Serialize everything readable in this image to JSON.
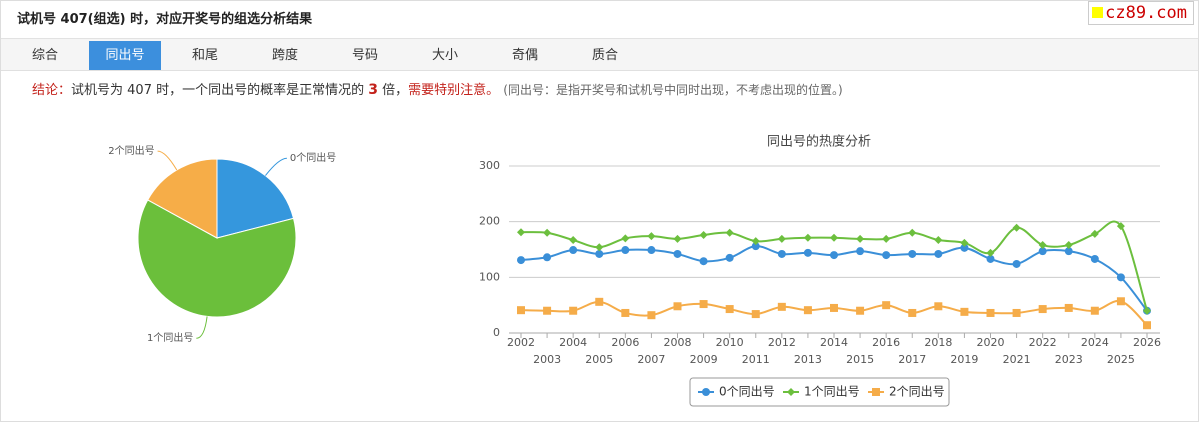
{
  "header": {
    "title": "试机号 407(组选) 时，对应开奖号的组选分析结果"
  },
  "watermark": "cz89.com",
  "tabs": [
    "综合",
    "同出号",
    "和尾",
    "跨度",
    "号码",
    "大小",
    "奇偶",
    "质合"
  ],
  "active_tab": 1,
  "conclusion": {
    "label": "结论：",
    "text": "试机号为 407 时，一个同出号的概率是正常情况的 ",
    "ratio": "3",
    "text_after": " 倍，",
    "warning": "需要特别注意。",
    "note": "(同出号：是指开奖号和试机号中同时出现，不考虑出现的位置。)"
  },
  "chart_data": [
    {
      "type": "pie",
      "categories": [
        "0个同出号",
        "1个同出号",
        "2个同出号"
      ],
      "values": [
        21,
        62,
        17
      ],
      "colors": [
        "#3597dd",
        "#6bbf3b",
        "#f6ad48"
      ]
    },
    {
      "type": "line",
      "title": "同出号的热度分析",
      "x": [
        2002,
        2003,
        2004,
        2005,
        2006,
        2007,
        2008,
        2009,
        2010,
        2011,
        2012,
        2013,
        2014,
        2015,
        2016,
        2017,
        2018,
        2019,
        2020,
        2021,
        2022,
        2023,
        2024,
        2025,
        2026
      ],
      "xticks": [
        2002,
        2003,
        2004,
        2005,
        2006,
        2007,
        2008,
        2009,
        2010,
        2011,
        2012,
        2013,
        2014,
        2015,
        2016,
        2017,
        2018,
        2019,
        2020,
        2021,
        2022,
        2023,
        2024,
        2025,
        2026
      ],
      "xlim": [
        2002,
        2026
      ],
      "ylim": [
        0,
        300
      ],
      "yticks": [
        0,
        100,
        200,
        300
      ],
      "grid": true,
      "series": [
        {
          "name": "0个同出号",
          "color": "#3a8fd8",
          "marker": "circle",
          "values": [
            131,
            136,
            149,
            142,
            149,
            149,
            142,
            129,
            135,
            156,
            142,
            144,
            140,
            147,
            140,
            142,
            142,
            153,
            133,
            124,
            147,
            147,
            133,
            100,
            40
          ]
        },
        {
          "name": "1个同出号",
          "color": "#6cbf3e",
          "marker": "diamond",
          "values": [
            181,
            180,
            167,
            154,
            170,
            174,
            169,
            176,
            180,
            165,
            169,
            171,
            171,
            169,
            169,
            180,
            167,
            162,
            144,
            189,
            158,
            158,
            178,
            192,
            40
          ]
        },
        {
          "name": "2个同出号",
          "color": "#f5ac49",
          "marker": "square",
          "values": [
            41,
            40,
            40,
            56,
            36,
            32,
            48,
            52,
            43,
            34,
            47,
            41,
            45,
            40,
            50,
            36,
            48,
            38,
            36,
            36,
            43,
            45,
            40,
            57,
            14
          ]
        }
      ]
    }
  ]
}
